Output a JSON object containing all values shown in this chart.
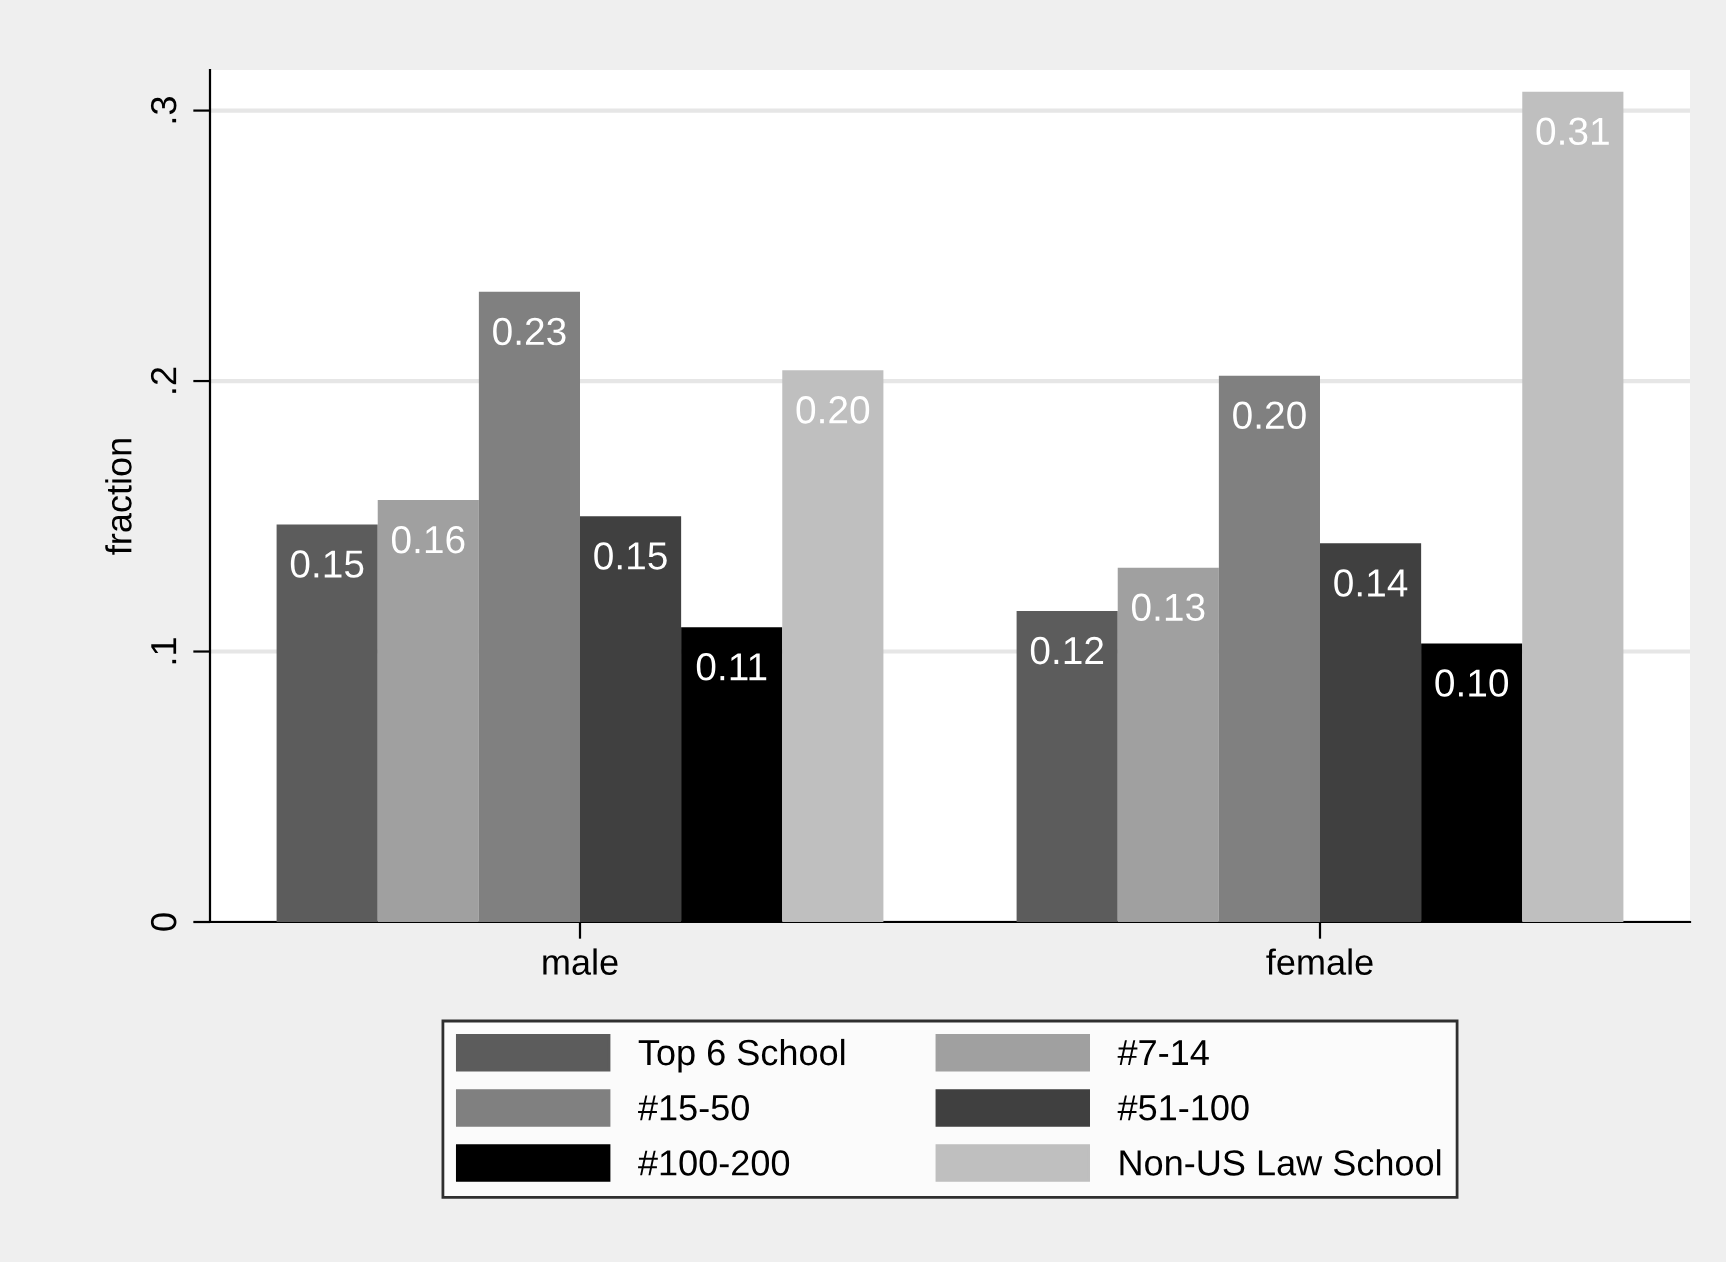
{
  "chart_data": {
    "type": "bar",
    "ylabel": "fraction",
    "categories": [
      "male",
      "female"
    ],
    "series": [
      {
        "name": "Top 6 School",
        "color": "#5c5c5c",
        "values": [
          0.147,
          0.115
        ],
        "value_labels": [
          "0.15",
          "0.12"
        ]
      },
      {
        "name": "#7-14",
        "color": "#a0a0a0",
        "values": [
          0.156,
          0.131
        ],
        "value_labels": [
          "0.16",
          "0.13"
        ]
      },
      {
        "name": "#15-50",
        "color": "#808080",
        "values": [
          0.233,
          0.202
        ],
        "value_labels": [
          "0.23",
          "0.20"
        ]
      },
      {
        "name": "#51-100",
        "color": "#404040",
        "values": [
          0.15,
          0.14
        ],
        "value_labels": [
          "0.15",
          "0.14"
        ]
      },
      {
        "name": "#100-200",
        "color": "#000000",
        "values": [
          0.109,
          0.103
        ],
        "value_labels": [
          "0.11",
          "0.10"
        ]
      },
      {
        "name": "Non-US Law School",
        "color": "#bfbfbf",
        "values": [
          0.204,
          0.307
        ],
        "value_labels": [
          "0.20",
          "0.31"
        ]
      }
    ],
    "ylim": [
      0,
      0.315
    ],
    "yticks": [
      {
        "value": 0,
        "label": "0"
      },
      {
        "value": 0.1,
        "label": ".1"
      },
      {
        "value": 0.2,
        "label": ".2"
      },
      {
        "value": 0.3,
        "label": ".3"
      }
    ],
    "grid": "y",
    "legend": "bottom"
  }
}
